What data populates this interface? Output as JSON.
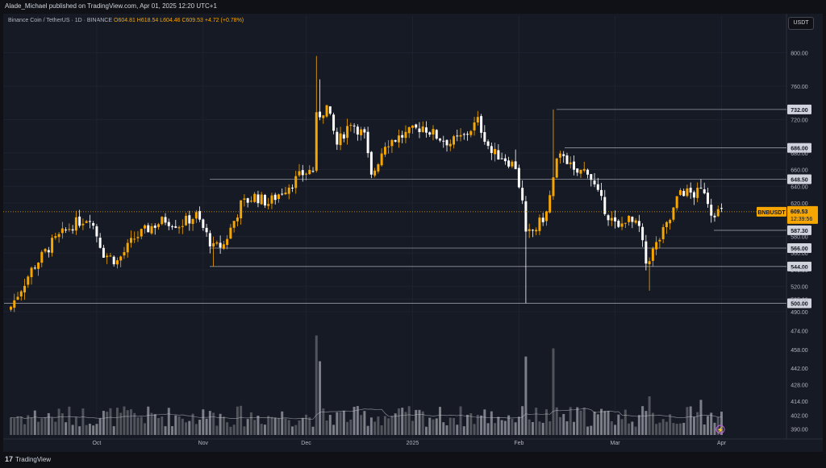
{
  "header": {
    "publisher": "Alade_Michael published on TradingView.com, Apr 01, 2025 12:20 UTC+1",
    "symbol": "Binance Coin / TetherUS · 1D · BINANCE",
    "ohlc": "O604.81 H618.54 L604.46 C609.53 +4.72 (+0.78%)",
    "currency": "USDT"
  },
  "footer": {
    "brand": "TradingView",
    "logo_mark": "17"
  },
  "colors": {
    "up": "#f7a600",
    "down": "#ffffff",
    "level": "#9598a1",
    "price": "#f7a600",
    "volume": "#8f929a"
  },
  "chart_data": {
    "type": "candlestick",
    "title": "Binance Coin / TetherUS · 1D · BINANCE",
    "ylim": [
      485,
      810
    ],
    "y_ticks": [
      800,
      760,
      720,
      680,
      660,
      640,
      620,
      580,
      560,
      540,
      520,
      505,
      490
    ],
    "x_ticks": [
      "Oct",
      "Nov",
      "Dec",
      "2025",
      "Feb",
      "Mar",
      "Apr"
    ],
    "levels": [
      732.0,
      686.0,
      648.5,
      587.3,
      566.0,
      544.0,
      500.0
    ],
    "last_price": {
      "symbol": "BNBUSDT",
      "value": "609.53",
      "countdown": "12:39:56"
    },
    "volume_ticks": [
      474.0,
      458.0,
      442.0,
      428.0,
      414.0,
      402.0,
      390.0
    ],
    "volume_ylim": [
      385,
      480
    ],
    "anchors": [
      [
        "2024-09-06",
        496
      ],
      [
        "2024-09-12",
        540
      ],
      [
        "2024-09-18",
        572
      ],
      [
        "2024-09-24",
        594
      ],
      [
        "2024-09-29",
        604
      ],
      [
        "2024-10-03",
        560
      ],
      [
        "2024-10-07",
        550
      ],
      [
        "2024-10-12",
        578
      ],
      [
        "2024-10-17",
        592
      ],
      [
        "2024-10-21",
        600
      ],
      [
        "2024-10-25",
        594
      ],
      [
        "2024-10-30",
        605
      ],
      [
        "2024-11-04",
        566
      ],
      [
        "2024-11-07",
        570
      ],
      [
        "2024-11-12",
        618
      ],
      [
        "2024-11-16",
        628
      ],
      [
        "2024-11-20",
        620
      ],
      [
        "2024-11-25",
        638
      ],
      [
        "2024-11-30",
        655
      ],
      [
        "2024-12-03",
        660
      ],
      [
        "2024-12-04",
        722
      ],
      [
        "2024-12-07",
        735
      ],
      [
        "2024-12-10",
        690
      ],
      [
        "2024-12-14",
        718
      ],
      [
        "2024-12-18",
        700
      ],
      [
        "2024-12-20",
        650
      ],
      [
        "2024-12-24",
        692
      ],
      [
        "2024-12-30",
        702
      ],
      [
        "2025-01-04",
        712
      ],
      [
        "2025-01-08",
        700
      ],
      [
        "2025-01-12",
        692
      ],
      [
        "2025-01-16",
        700
      ],
      [
        "2025-01-20",
        718
      ],
      [
        "2025-01-24",
        680
      ],
      [
        "2025-01-27",
        676
      ],
      [
        "2025-01-31",
        664
      ],
      [
        "2025-02-02",
        620
      ],
      [
        "2025-02-03",
        580
      ],
      [
        "2025-02-06",
        590
      ],
      [
        "2025-02-09",
        608
      ],
      [
        "2025-02-12",
        668
      ],
      [
        "2025-02-14",
        680
      ],
      [
        "2025-02-17",
        655
      ],
      [
        "2025-02-21",
        660
      ],
      [
        "2025-02-24",
        630
      ],
      [
        "2025-02-27",
        605
      ],
      [
        "2025-03-02",
        588
      ],
      [
        "2025-03-04",
        602
      ],
      [
        "2025-03-08",
        590
      ],
      [
        "2025-03-10",
        548
      ],
      [
        "2025-03-13",
        570
      ],
      [
        "2025-03-17",
        600
      ],
      [
        "2025-03-20",
        635
      ],
      [
        "2025-03-24",
        630
      ],
      [
        "2025-03-27",
        636
      ],
      [
        "2025-03-29",
        610
      ],
      [
        "2025-04-01",
        609.53
      ]
    ]
  }
}
